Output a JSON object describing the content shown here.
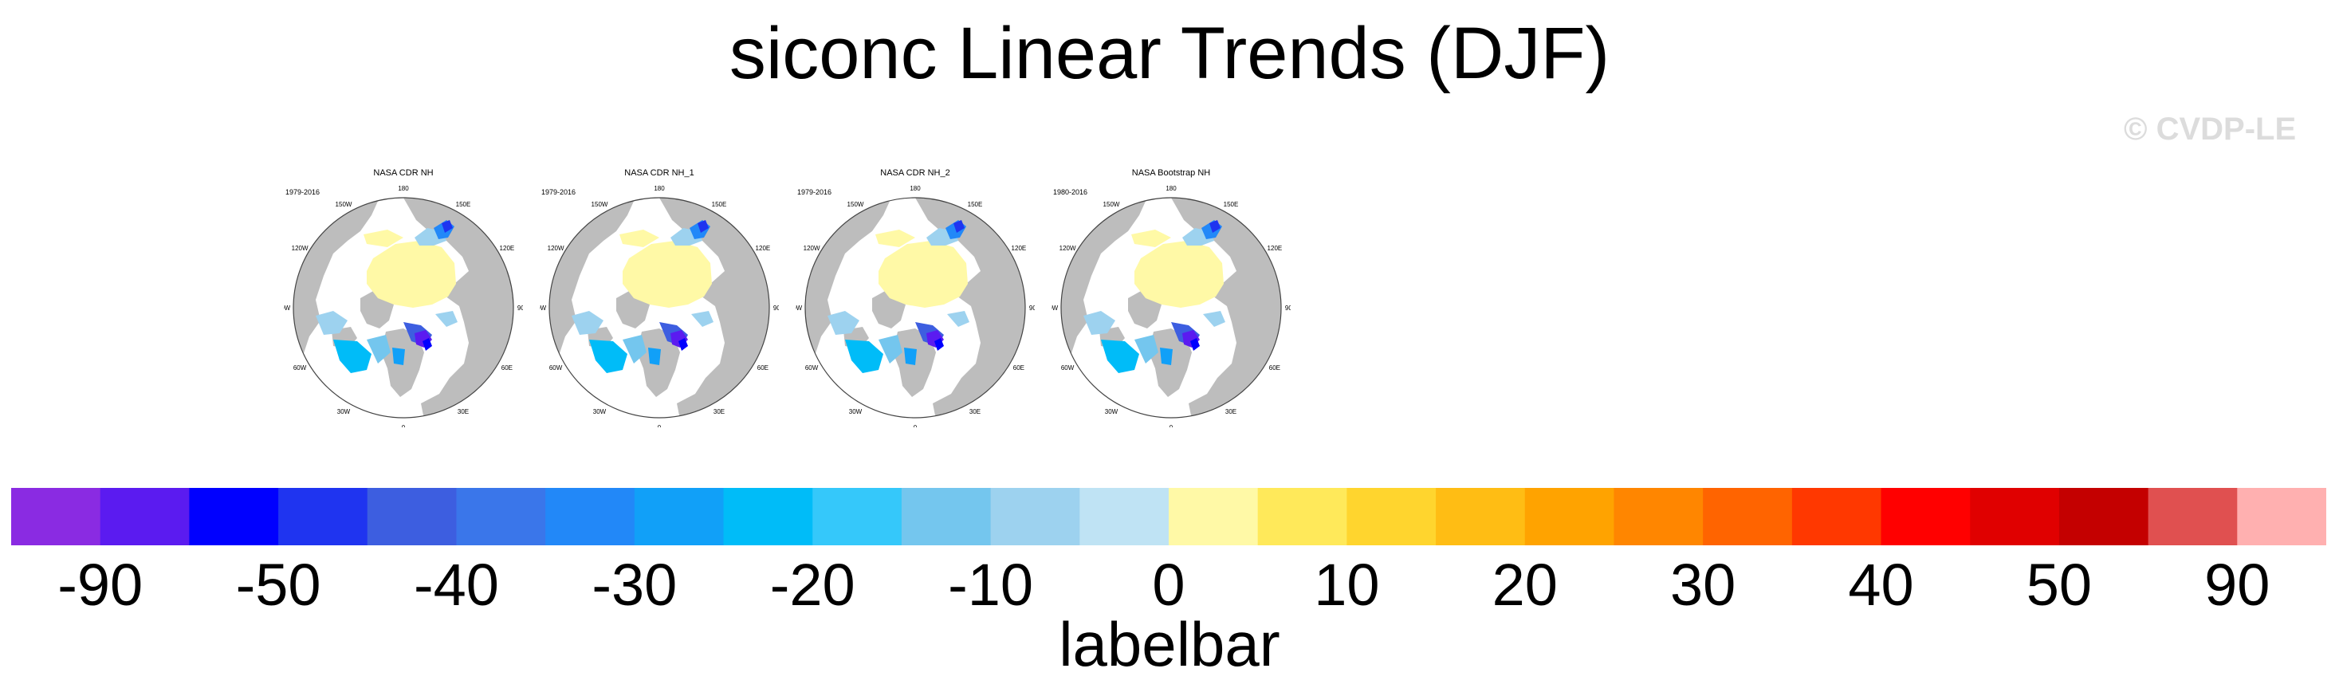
{
  "title": "siconc Linear Trends (DJF)",
  "watermark": "© CVDP-LE",
  "panels": [
    {
      "name": "NASA CDR NH",
      "years": "1979-2016"
    },
    {
      "name": "NASA CDR NH_1",
      "years": "1979-2016"
    },
    {
      "name": "NASA CDR NH_2",
      "years": "1979-2016"
    },
    {
      "name": "NASA Bootstrap NH",
      "years": "1980-2016"
    }
  ],
  "map_lon_labels": [
    "180",
    "150E",
    "120E",
    "90E",
    "60E",
    "30E",
    "0",
    "30W",
    "60W",
    "90W",
    "120W",
    "150W"
  ],
  "colors": {
    "land": "#bdbdbd",
    "near_zero": "#fff9a6",
    "ocean": "#ffffff"
  },
  "labelbar": {
    "title": "labelbar",
    "colors": [
      "#8a2be2",
      "#5b1bf0",
      "#0000ff",
      "#1f34f0",
      "#3d5ee0",
      "#3a76ea",
      "#2288f8",
      "#11a0f8",
      "#00bcf8",
      "#35c8fa",
      "#74c6ee",
      "#9dd2ef",
      "#bfe3f4",
      "#fff9a6",
      "#ffe95a",
      "#ffd52e",
      "#ffbd14",
      "#ffa300",
      "#ff8600",
      "#ff6400",
      "#ff3800",
      "#ff0000",
      "#e00000",
      "#c40000",
      "#e05050",
      "#ffb0b0"
    ],
    "tick_labels": [
      "-90",
      "-50",
      "-40",
      "-30",
      "-20",
      "-10",
      "0",
      "10",
      "20",
      "30",
      "40",
      "50",
      "90"
    ]
  }
}
